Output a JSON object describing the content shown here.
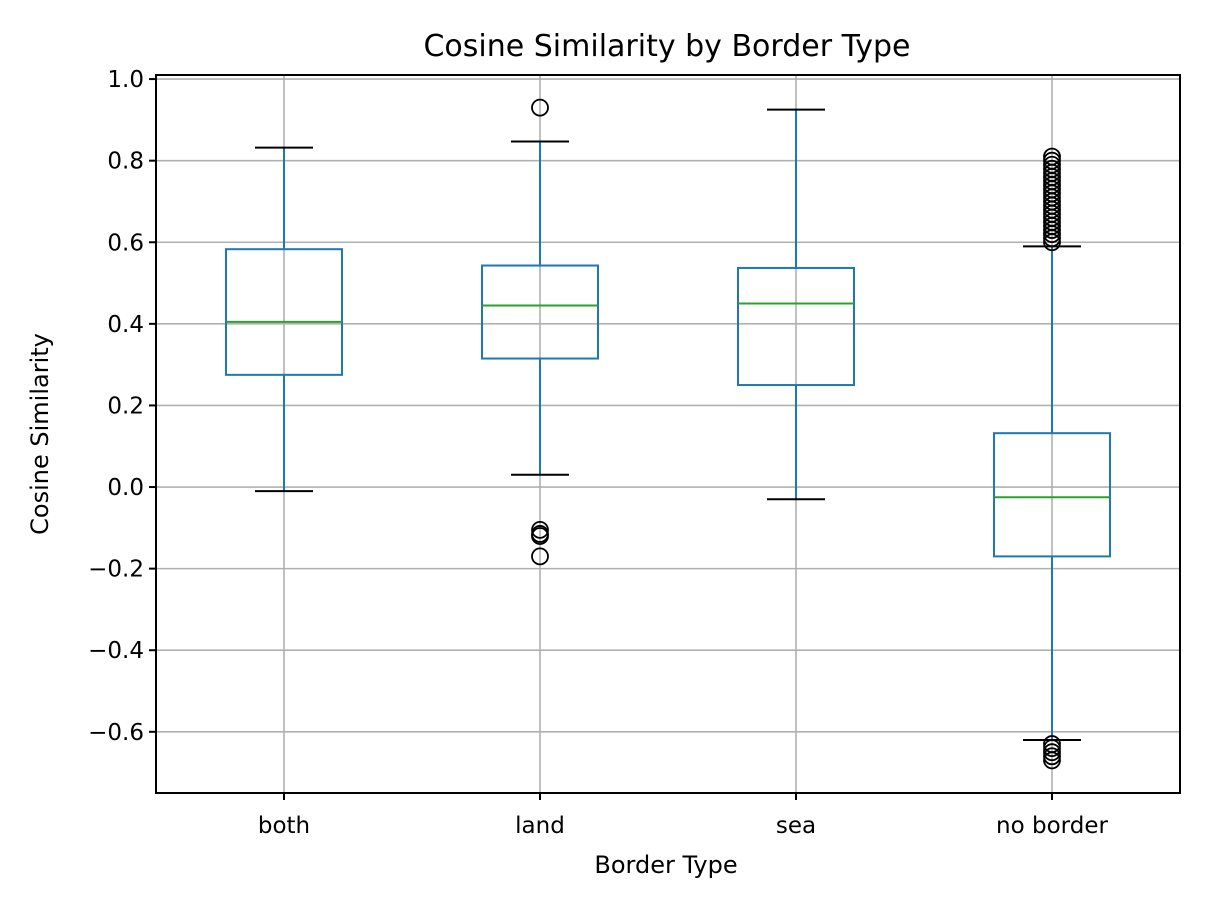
{
  "chart_data": {
    "type": "box",
    "title": "Cosine Similarity by Border Type",
    "xlabel": "Border Type",
    "ylabel": "Cosine Similarity",
    "ylim": [
      -0.75,
      1.01
    ],
    "yticks": [
      -0.6,
      -0.4,
      -0.2,
      0.0,
      0.2,
      0.4,
      0.6,
      0.8,
      1.0
    ],
    "ytick_labels": [
      "−0.6",
      "−0.4",
      "−0.2",
      "0.0",
      "0.2",
      "0.4",
      "0.6",
      "0.8",
      "1.0"
    ],
    "grid": true,
    "colors": {
      "box": "#1f77b4",
      "median": "#2ca02c",
      "cap": "#000000",
      "flier": "#000000"
    },
    "categories": [
      "both",
      "land",
      "sea",
      "no border"
    ],
    "boxes": [
      {
        "category": "both",
        "whisker_low": -0.01,
        "q1": 0.275,
        "median": 0.405,
        "q3": 0.583,
        "whisker_high": 0.832,
        "fliers": []
      },
      {
        "category": "land",
        "whisker_low": 0.03,
        "q1": 0.315,
        "median": 0.445,
        "q3": 0.543,
        "whisker_high": 0.847,
        "fliers": [
          0.93,
          -0.105,
          -0.115,
          -0.12,
          -0.17
        ]
      },
      {
        "category": "sea",
        "whisker_low": -0.03,
        "q1": 0.25,
        "median": 0.45,
        "q3": 0.537,
        "whisker_high": 0.925,
        "fliers": []
      },
      {
        "category": "no border",
        "whisker_low": -0.62,
        "q1": -0.17,
        "median": -0.025,
        "q3": 0.132,
        "whisker_high": 0.59,
        "fliers": [
          0.6,
          0.61,
          0.62,
          0.63,
          0.64,
          0.65,
          0.66,
          0.67,
          0.68,
          0.69,
          0.7,
          0.71,
          0.72,
          0.73,
          0.74,
          0.75,
          0.76,
          0.77,
          0.78,
          0.79,
          0.8,
          0.81,
          -0.63,
          -0.64,
          -0.65,
          -0.66,
          -0.67
        ]
      }
    ]
  }
}
